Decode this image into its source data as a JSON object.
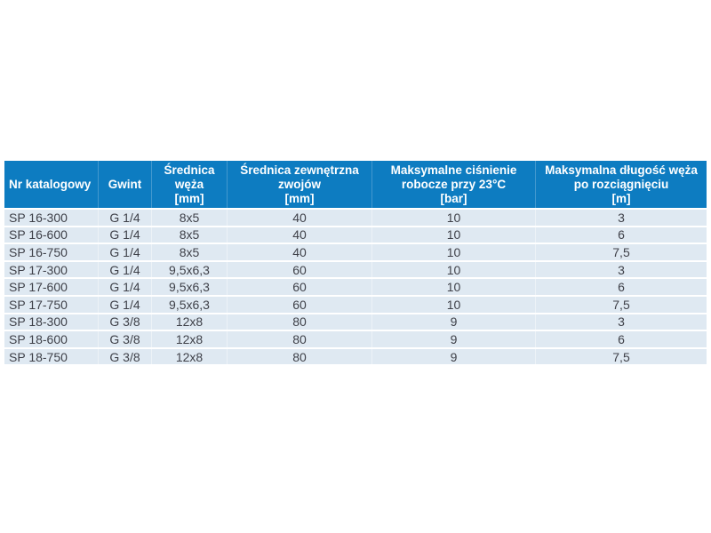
{
  "colors": {
    "header_bg": "#0d7cc1",
    "header_text": "#ffffff",
    "row_bg": "#dfe9f2",
    "row_text": "#3f4149",
    "page_bg": "#ffffff"
  },
  "table": {
    "columns": [
      {
        "id": "nr-katalogowy",
        "lines": [
          "Nr katalogowy"
        ]
      },
      {
        "id": "gwint",
        "lines": [
          "Gwint"
        ]
      },
      {
        "id": "srednica-weza",
        "lines": [
          "Średnica",
          "węża",
          "[mm]"
        ]
      },
      {
        "id": "srednica-zewnetrzna-zwojow",
        "lines": [
          "Średnica zewnętrzna",
          "zwojów",
          "[mm]"
        ]
      },
      {
        "id": "maksymalne-cisnienie-robocze",
        "lines": [
          "Maksymalne ciśnienie",
          "robocze przy 23°C",
          "[bar]"
        ]
      },
      {
        "id": "maksymalna-dlugosc-weza",
        "lines": [
          "Maksymalna długość węża",
          "po rozciągnięciu",
          "[m]"
        ]
      }
    ],
    "rows": [
      [
        "SP 16-300",
        "G 1/4",
        "8x5",
        "40",
        "10",
        "3"
      ],
      [
        "SP 16-600",
        "G 1/4",
        "8x5",
        "40",
        "10",
        "6"
      ],
      [
        "SP 16-750",
        "G 1/4",
        "8x5",
        "40",
        "10",
        "7,5"
      ],
      [
        "SP 17-300",
        "G 1/4",
        "9,5x6,3",
        "60",
        "10",
        "3"
      ],
      [
        "SP 17-600",
        "G 1/4",
        "9,5x6,3",
        "60",
        "10",
        "6"
      ],
      [
        "SP 17-750",
        "G 1/4",
        "9,5x6,3",
        "60",
        "10",
        "7,5"
      ],
      [
        "SP 18-300",
        "G 3/8",
        "12x8",
        "80",
        "9",
        "3"
      ],
      [
        "SP 18-600",
        "G 3/8",
        "12x8",
        "80",
        "9",
        "6"
      ],
      [
        "SP 18-750",
        "G 3/8",
        "12x8",
        "80",
        "9",
        "7,5"
      ]
    ]
  }
}
